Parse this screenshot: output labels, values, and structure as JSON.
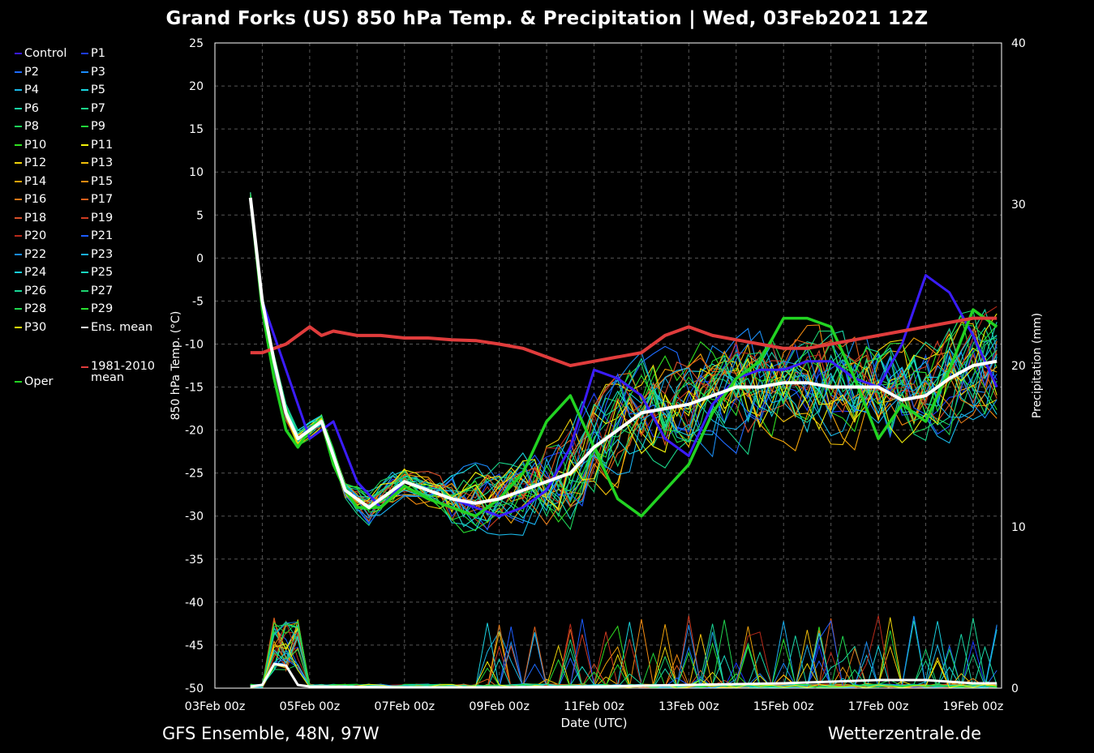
{
  "title": "Grand Forks  (US)  850 hPa Temp. & Precipitation | Wed, 03Feb2021 12Z",
  "footer": {
    "left": "GFS Ensemble, 48N, 97W",
    "right": "Wetterzentrale.de"
  },
  "legend": [
    {
      "label": "Control",
      "color": "#3b1cff"
    },
    {
      "label": "P1",
      "color": "#1c3cff"
    },
    {
      "label": "P2",
      "color": "#1e6bff"
    },
    {
      "label": "P3",
      "color": "#1a8cff"
    },
    {
      "label": "P4",
      "color": "#19b8e8"
    },
    {
      "label": "P5",
      "color": "#19d6e0"
    },
    {
      "label": "P6",
      "color": "#19d8a8"
    },
    {
      "label": "P7",
      "color": "#1bd68a"
    },
    {
      "label": "P8",
      "color": "#1ed45a"
    },
    {
      "label": "P9",
      "color": "#22d83a"
    },
    {
      "label": "P10",
      "color": "#30e020"
    },
    {
      "label": "P11",
      "color": "#f2f20a"
    },
    {
      "label": "P12",
      "color": "#f0d40a"
    },
    {
      "label": "P13",
      "color": "#f2c00a"
    },
    {
      "label": "P14",
      "color": "#f2a40a"
    },
    {
      "label": "P15",
      "color": "#f28a10"
    },
    {
      "label": "P16",
      "color": "#e07818"
    },
    {
      "label": "P17",
      "color": "#e0601c"
    },
    {
      "label": "P18",
      "color": "#d8502a"
    },
    {
      "label": "P19",
      "color": "#d03c22"
    },
    {
      "label": "P20",
      "color": "#b82a1a"
    },
    {
      "label": "P21",
      "color": "#1c5cff"
    },
    {
      "label": "P22",
      "color": "#1a8cf0"
    },
    {
      "label": "P23",
      "color": "#1ab0f0"
    },
    {
      "label": "P24",
      "color": "#19d0e0"
    },
    {
      "label": "P25",
      "color": "#19d8c0"
    },
    {
      "label": "P26",
      "color": "#19d898"
    },
    {
      "label": "P27",
      "color": "#1cd470"
    },
    {
      "label": "P28",
      "color": "#20d850"
    },
    {
      "label": "P29",
      "color": "#28e030"
    },
    {
      "label": "P30",
      "color": "#f0f00a"
    },
    {
      "label": "Ens. mean",
      "color": "#ffffff"
    },
    {
      "label": "1981-2010 mean",
      "color": "#e03c3c"
    },
    {
      "label": "Oper",
      "color": "#22d322"
    }
  ],
  "chart_data": {
    "type": "line",
    "title": "Grand Forks  (US)  850 hPa Temp. & Precipitation | Wed, 03Feb2021 12Z",
    "xlabel": "Date (UTC)",
    "ylabel": "850 hPa Temp. (°C)",
    "y2label": "Precipitation (mm)",
    "x_ticks": [
      "03Feb 00z",
      "05Feb 00z",
      "07Feb 00z",
      "09Feb 00z",
      "11Feb 00z",
      "13Feb 00z",
      "15Feb 00z",
      "17Feb 00z",
      "19Feb 00z"
    ],
    "xlim": [
      0,
      16.6
    ],
    "ylim": [
      -50,
      25
    ],
    "y_ticks": [
      25,
      20,
      15,
      10,
      5,
      0,
      -5,
      -10,
      -15,
      -20,
      -25,
      -30,
      -35,
      -40,
      -45,
      -50
    ],
    "y2lim": [
      0,
      40
    ],
    "y2_ticks": [
      40,
      30,
      20,
      10,
      0
    ],
    "grid": true,
    "legend_position": "left",
    "units": {
      "x": "days since 03Feb 00z"
    },
    "series": [
      {
        "name": "Ens. mean",
        "color": "#ffffff",
        "x": [
          0.75,
          1,
          1.25,
          1.5,
          1.75,
          2,
          2.25,
          2.5,
          2.75,
          3,
          3.25,
          3.5,
          3.75,
          4,
          4.5,
          5,
          5.5,
          6,
          6.5,
          7,
          7.5,
          8,
          8.5,
          9,
          9.5,
          10,
          10.5,
          11,
          11.5,
          12,
          12.5,
          13,
          13.5,
          14,
          14.5,
          15,
          15.5,
          16,
          16.5
        ],
        "values": [
          7,
          -5,
          -12,
          -18,
          -21,
          -20,
          -19,
          -23,
          -27,
          -28,
          -29,
          -28,
          -27,
          -26,
          -27,
          -28,
          -28.5,
          -28,
          -27,
          -26,
          -25,
          -22,
          -20,
          -18,
          -17.5,
          -17,
          -16,
          -15,
          -15,
          -14.5,
          -14.5,
          -15,
          -15,
          -15,
          -16.5,
          -16,
          -14,
          -12.5,
          -12
        ]
      },
      {
        "name": "1981-2010 mean",
        "color": "#e03c3c",
        "x": [
          0.75,
          1,
          1.5,
          1.75,
          2,
          2.25,
          2.5,
          3,
          3.5,
          4,
          4.5,
          5,
          5.5,
          6,
          6.5,
          7,
          7.5,
          8,
          8.5,
          9,
          9.5,
          10,
          10.5,
          11,
          11.5,
          12,
          12.5,
          13,
          13.5,
          14,
          14.5,
          15,
          15.5,
          16,
          16.5
        ],
        "values": [
          -11,
          -11,
          -10,
          -9,
          -8,
          -9,
          -8.5,
          -9,
          -9,
          -9.3,
          -9.3,
          -9.5,
          -9.6,
          -10,
          -10.5,
          -11.5,
          -12.5,
          -12,
          -11.5,
          -11,
          -9,
          -8,
          -9,
          -9.5,
          -10,
          -10.5,
          -10.5,
          -10,
          -9.5,
          -9,
          -8.5,
          -8,
          -7.5,
          -7,
          -7
        ]
      },
      {
        "name": "Oper",
        "color": "#22d322",
        "x": [
          0.75,
          1,
          1.25,
          1.5,
          1.75,
          2,
          2.25,
          2.5,
          2.75,
          3,
          3.5,
          4,
          4.5,
          5,
          5.5,
          6,
          6.5,
          7,
          7.5,
          8,
          8.5,
          9,
          9.5,
          10,
          10.5,
          11,
          11.5,
          12,
          12.5,
          13,
          13.5,
          14,
          14.5,
          15,
          15.5,
          16,
          16.5
        ],
        "values": [
          7,
          -6,
          -14,
          -20,
          -22,
          -20,
          -19,
          -24,
          -27,
          -29,
          -29,
          -26.5,
          -28,
          -29,
          -30,
          -28,
          -25,
          -19,
          -16,
          -22,
          -28,
          -30,
          -27,
          -24,
          -18,
          -14,
          -12,
          -7,
          -7,
          -8,
          -14,
          -21,
          -17,
          -19,
          -13,
          -6,
          -8
        ]
      },
      {
        "name": "Control",
        "color": "#3b1cff",
        "x": [
          0.75,
          1,
          1.5,
          2,
          2.5,
          3,
          3.5,
          4,
          4.5,
          5,
          5.5,
          6,
          6.5,
          7,
          7.5,
          8,
          8.5,
          9,
          9.5,
          10,
          10.5,
          11,
          11.5,
          12,
          12.5,
          13,
          13.5,
          14,
          14.5,
          15,
          15.5,
          16,
          16.5
        ],
        "values": [
          7,
          -5,
          -13,
          -21,
          -19,
          -26,
          -29,
          -26,
          -27,
          -28,
          -29,
          -30,
          -29,
          -27,
          -22,
          -13,
          -14,
          -16,
          -21,
          -23,
          -17,
          -14,
          -13,
          -13,
          -12,
          -12,
          -14,
          -15,
          -10,
          -2,
          -4,
          -9,
          -15
        ]
      }
    ],
    "ensemble_member_count": 30,
    "precip_series": [
      {
        "name": "Ens. mean",
        "color": "#ffffff",
        "x": [
          0.75,
          1,
          1.25,
          1.5,
          1.75,
          2,
          4,
          6,
          8,
          10,
          12,
          13,
          14,
          15,
          16,
          16.5
        ],
        "values": [
          0.1,
          0.2,
          1.5,
          1.4,
          0.2,
          0.1,
          0.05,
          0.05,
          0.1,
          0.2,
          0.3,
          0.4,
          0.5,
          0.5,
          0.3,
          0.3
        ]
      }
    ]
  }
}
